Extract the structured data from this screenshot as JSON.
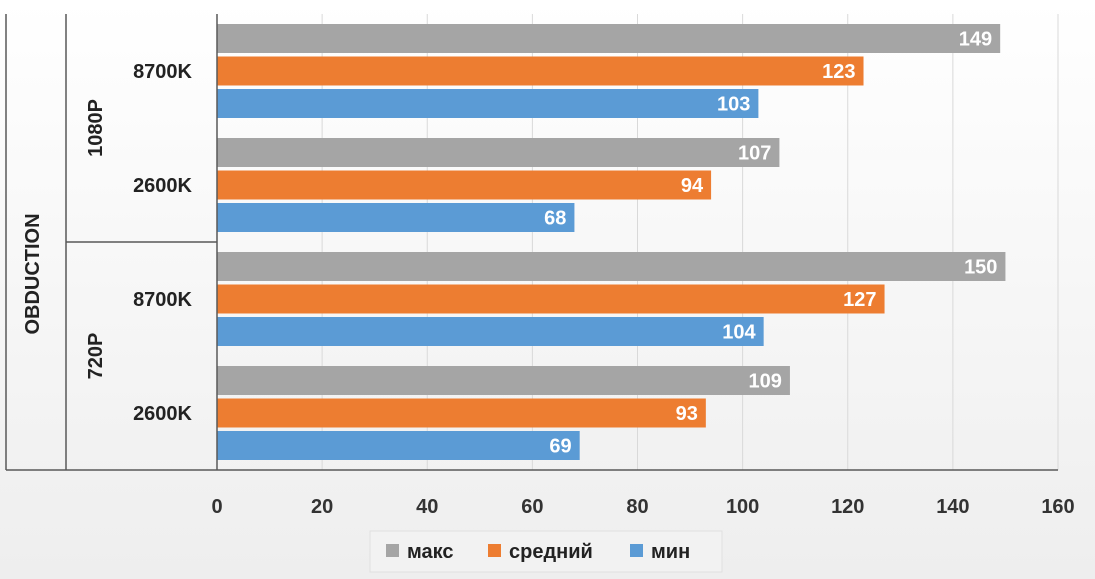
{
  "chart_data": {
    "type": "bar",
    "orientation": "horizontal",
    "outer_label": "OBDUCTION",
    "groups": [
      {
        "label": "1080P",
        "categories": [
          {
            "label": "8700K",
            "values": [
              149,
              123,
              103
            ]
          },
          {
            "label": "2600K",
            "values": [
              107,
              94,
              68
            ]
          }
        ]
      },
      {
        "label": "720P",
        "categories": [
          {
            "label": "8700K",
            "values": [
              150,
              127,
              104
            ]
          },
          {
            "label": "2600K",
            "values": [
              109,
              93,
              69
            ]
          }
        ]
      }
    ],
    "series": [
      {
        "name": "макс",
        "color": "#a5a5a5"
      },
      {
        "name": "средний",
        "color": "#ed7d31"
      },
      {
        "name": "мин",
        "color": "#5b9bd5"
      }
    ],
    "xlim": [
      0,
      160
    ],
    "xticks": [
      0,
      20,
      40,
      60,
      80,
      100,
      120,
      140,
      160
    ],
    "grid": true,
    "legend_position": "bottom"
  }
}
